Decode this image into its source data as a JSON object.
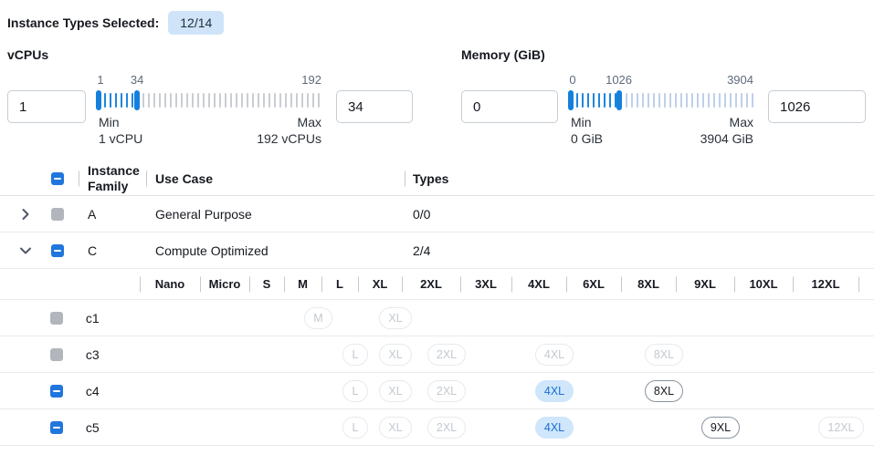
{
  "topbar": {
    "label": "Instance Types Selected:",
    "badge": "12/14"
  },
  "colors": {
    "accent_blue": "#2176dd",
    "slider_blue": "#1f86de",
    "badge_bg": "#cfe4f8",
    "selected_pill_bg": "#cfe6fb",
    "selected_pill_text": "#1c6fd2",
    "disabled_gray": "#b2b6bc"
  },
  "filters": {
    "vcpus": {
      "title": "vCPUs",
      "min_input": "1",
      "max_input": "34",
      "slider": {
        "min": 1,
        "max": 192,
        "lower": 1,
        "upper": 34,
        "label_min": "1",
        "label_value": "34",
        "label_max": "192",
        "caption_min_title": "Min",
        "caption_min_value": "1 vCPU",
        "caption_max_title": "Max",
        "caption_max_value": "192 vCPUs"
      }
    },
    "memory": {
      "title": "Memory (GiB)",
      "min_input": "0",
      "max_input": "1026",
      "slider": {
        "min": 0,
        "max": 3904,
        "lower": 0,
        "upper": 1026,
        "label_min": "0",
        "label_value": "1026",
        "label_max": "3904",
        "caption_min_title": "Min",
        "caption_min_value": "0 GiB",
        "caption_max_title": "Max",
        "caption_max_value": "3904 GiB"
      }
    }
  },
  "table": {
    "columns": {
      "family": "Instance Family",
      "use_case": "Use Case",
      "types": "Types"
    },
    "header_checkbox": "indeterminate",
    "size_columns": [
      "Nano",
      "Micro",
      "S",
      "M",
      "L",
      "XL",
      "2XL",
      "3XL",
      "4XL",
      "6XL",
      "8XL",
      "9XL",
      "10XL",
      "12XL"
    ],
    "rows": [
      {
        "kind": "family",
        "expanded": false,
        "checkbox": "disabled",
        "family": "A",
        "use_case": "General Purpose",
        "types": "0/0"
      },
      {
        "kind": "family",
        "expanded": true,
        "checkbox": "indeterminate",
        "family": "C",
        "use_case": "Compute Optimized",
        "types": "2/4"
      },
      {
        "kind": "size-header"
      },
      {
        "kind": "type",
        "checkbox": "disabled",
        "name": "c1",
        "pills": {
          "M": "disabled",
          "XL": "disabled"
        }
      },
      {
        "kind": "type",
        "checkbox": "disabled",
        "name": "c3",
        "pills": {
          "L": "disabled",
          "XL": "disabled",
          "2XL": "disabled",
          "4XL": "disabled",
          "8XL": "disabled"
        }
      },
      {
        "kind": "type",
        "checkbox": "indeterminate",
        "name": "c4",
        "pills": {
          "L": "disabled",
          "XL": "disabled",
          "2XL": "disabled",
          "4XL": "selected",
          "8XL": "enabled"
        }
      },
      {
        "kind": "type",
        "checkbox": "indeterminate",
        "name": "c5",
        "pills": {
          "L": "disabled",
          "XL": "disabled",
          "2XL": "disabled",
          "4XL": "selected",
          "9XL": "enabled",
          "12XL": "disabled"
        }
      }
    ]
  }
}
